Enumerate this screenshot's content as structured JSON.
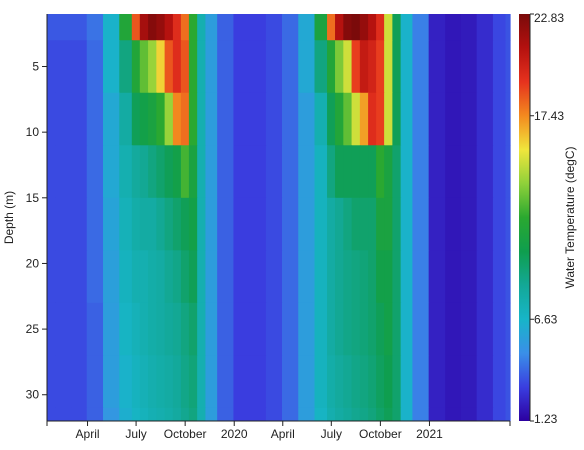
{
  "chart_data": {
    "type": "heatmap",
    "ylabel": "Depth (m)",
    "y_reversed": true,
    "y_ticks": [
      5,
      10,
      15,
      20,
      25,
      30
    ],
    "ylim": [
      32,
      1
    ],
    "depth_layers": [
      {
        "top": 1,
        "bottom": 3
      },
      {
        "top": 3,
        "bottom": 7
      },
      {
        "top": 7,
        "bottom": 11
      },
      {
        "top": 11,
        "bottom": 15
      },
      {
        "top": 15,
        "bottom": 19
      },
      {
        "top": 19,
        "bottom": 23
      },
      {
        "top": 23,
        "bottom": 27
      },
      {
        "top": 27,
        "bottom": 31
      },
      {
        "top": 31,
        "bottom": 32
      }
    ],
    "xlim": [
      "2019-01-15",
      "2021-06-01"
    ],
    "x_ticks": [
      {
        "date": "2019-04-01",
        "label": "April"
      },
      {
        "date": "2019-07-01",
        "label": "July"
      },
      {
        "date": "2019-10-01",
        "label": "October"
      },
      {
        "date": "2020-01-01",
        "label": "2020"
      },
      {
        "date": "2020-04-01",
        "label": "April"
      },
      {
        "date": "2020-07-01",
        "label": "July"
      },
      {
        "date": "2020-10-01",
        "label": "October"
      },
      {
        "date": "2021-01-01",
        "label": "2021"
      }
    ],
    "dates": [
      "2019-01-15",
      "2019-02-15",
      "2019-03-15",
      "2019-04-15",
      "2019-05-15",
      "2019-06-15",
      "2019-07-01",
      "2019-07-15",
      "2019-08-01",
      "2019-08-15",
      "2019-09-01",
      "2019-09-15",
      "2019-10-01",
      "2019-10-15",
      "2019-11-01",
      "2019-11-15",
      "2019-12-15",
      "2020-01-15",
      "2020-02-15",
      "2020-03-15",
      "2020-04-15",
      "2020-05-15",
      "2020-06-15",
      "2020-07-01",
      "2020-07-15",
      "2020-08-01",
      "2020-08-15",
      "2020-09-01",
      "2020-09-15",
      "2020-10-01",
      "2020-10-15",
      "2020-11-01",
      "2020-11-15",
      "2020-12-15",
      "2021-01-15",
      "2021-02-15",
      "2021-03-15",
      "2021-04-15",
      "2021-05-15",
      "2021-06-01"
    ],
    "temperature_by_layer": [
      [
        3.6,
        3.6,
        3.6,
        4.2,
        6.5,
        11.5,
        18.5,
        21.5,
        22.5,
        22.0,
        21.0,
        19.5,
        18.0,
        12.0,
        7.5,
        5.5,
        3.8,
        3.0,
        3.0,
        3.3,
        4.0,
        6.0,
        11.0,
        18.0,
        21.0,
        22.5,
        22.8,
        22.0,
        21.0,
        19.5,
        15.0,
        10.0,
        6.5,
        4.5,
        2.2,
        1.9,
        2.0,
        2.5,
        3.2,
        3.5
      ],
      [
        3.3,
        3.3,
        3.3,
        4.0,
        6.5,
        9.0,
        11.5,
        13.0,
        14.0,
        16.0,
        18.5,
        19.5,
        18.5,
        12.0,
        7.5,
        5.5,
        3.8,
        3.0,
        3.0,
        3.3,
        4.0,
        6.0,
        9.0,
        11.5,
        13.5,
        15.0,
        19.0,
        20.5,
        20.0,
        19.0,
        15.0,
        10.0,
        6.5,
        4.5,
        2.2,
        1.9,
        2.0,
        2.5,
        3.2,
        3.5
      ],
      [
        3.3,
        3.3,
        3.3,
        4.0,
        6.0,
        8.0,
        10.0,
        10.5,
        11.0,
        12.0,
        14.0,
        17.5,
        18.0,
        12.0,
        7.5,
        5.5,
        3.8,
        3.0,
        3.0,
        3.3,
        4.0,
        5.5,
        7.5,
        10.0,
        11.5,
        13.0,
        15.0,
        17.0,
        19.5,
        19.0,
        15.0,
        10.0,
        6.5,
        4.5,
        2.2,
        1.9,
        2.0,
        2.5,
        3.2,
        3.5
      ],
      [
        3.3,
        3.3,
        3.3,
        4.0,
        6.0,
        7.5,
        8.2,
        8.5,
        9.0,
        9.5,
        10.0,
        10.5,
        12.5,
        11.0,
        7.5,
        5.5,
        3.8,
        3.0,
        3.0,
        3.3,
        4.0,
        5.5,
        7.0,
        9.0,
        10.0,
        10.0,
        10.0,
        10.0,
        10.0,
        12.0,
        11.0,
        9.5,
        6.5,
        4.5,
        2.2,
        1.9,
        2.0,
        2.5,
        3.2,
        3.5
      ],
      [
        3.3,
        3.3,
        3.3,
        4.0,
        5.8,
        7.2,
        7.8,
        8.0,
        8.0,
        8.5,
        9.0,
        9.5,
        10.0,
        10.5,
        7.5,
        5.5,
        3.8,
        3.0,
        3.0,
        3.3,
        4.0,
        5.5,
        7.0,
        8.0,
        8.5,
        9.0,
        9.5,
        9.5,
        9.5,
        11.0,
        11.0,
        9.5,
        6.5,
        4.5,
        2.2,
        1.9,
        2.0,
        2.5,
        3.2,
        3.5
      ],
      [
        3.3,
        3.3,
        3.3,
        4.0,
        5.6,
        7.0,
        7.5,
        7.5,
        7.8,
        8.0,
        8.5,
        8.8,
        9.5,
        10.0,
        7.5,
        5.5,
        3.8,
        3.0,
        3.0,
        3.3,
        4.0,
        5.5,
        7.0,
        8.0,
        8.5,
        8.8,
        9.0,
        9.2,
        9.5,
        10.5,
        10.5,
        9.5,
        6.5,
        4.5,
        2.2,
        1.9,
        2.0,
        2.5,
        3.2,
        3.5
      ],
      [
        3.3,
        3.3,
        3.3,
        3.8,
        5.5,
        6.8,
        7.2,
        7.5,
        7.8,
        8.0,
        8.3,
        8.5,
        9.0,
        9.5,
        7.5,
        5.5,
        3.8,
        3.0,
        3.0,
        3.3,
        4.0,
        5.5,
        7.0,
        8.0,
        8.5,
        8.8,
        9.0,
        9.2,
        9.5,
        10.0,
        10.5,
        9.5,
        6.5,
        4.5,
        2.2,
        1.9,
        2.0,
        2.5,
        3.2,
        3.5
      ],
      [
        3.3,
        3.3,
        3.3,
        3.8,
        5.5,
        6.5,
        7.0,
        7.3,
        7.6,
        7.8,
        8.0,
        8.3,
        8.8,
        9.2,
        7.5,
        5.5,
        3.8,
        3.0,
        3.0,
        3.3,
        4.0,
        5.5,
        7.0,
        7.8,
        8.2,
        8.5,
        8.8,
        9.0,
        9.3,
        9.8,
        10.2,
        9.5,
        6.5,
        4.5,
        2.2,
        1.9,
        2.0,
        2.5,
        3.2,
        3.5
      ],
      [
        3.3,
        3.3,
        3.3,
        3.8,
        5.2,
        6.3,
        6.8,
        7.1,
        7.4,
        7.6,
        7.8,
        8.1,
        8.6,
        9.0,
        7.5,
        5.5,
        3.8,
        3.0,
        3.0,
        3.3,
        4.0,
        5.5,
        6.8,
        7.6,
        8.0,
        8.3,
        8.6,
        8.8,
        9.1,
        9.6,
        10.0,
        9.5,
        6.5,
        4.5,
        2.2,
        1.9,
        2.0,
        2.5,
        3.2,
        3.5
      ]
    ],
    "colorbar": {
      "label": "Water Temperature (degC)",
      "min": 1.23,
      "max": 22.83,
      "ticks": [
        {
          "value": 22.83,
          "label": "22.83"
        },
        {
          "value": 17.43,
          "label": "17.43"
        },
        {
          "value": 6.63,
          "label": "6.63"
        },
        {
          "value": 1.23,
          "label": "1.23"
        }
      ],
      "colors": [
        "#2c00a0",
        "#3a3ee0",
        "#3a8fe8",
        "#17b5c8",
        "#13a897",
        "#0f9e4e",
        "#2aa830",
        "#8fd13a",
        "#f0e63c",
        "#f38a1f",
        "#e6321e",
        "#b4110f",
        "#7a0a0a"
      ]
    }
  }
}
